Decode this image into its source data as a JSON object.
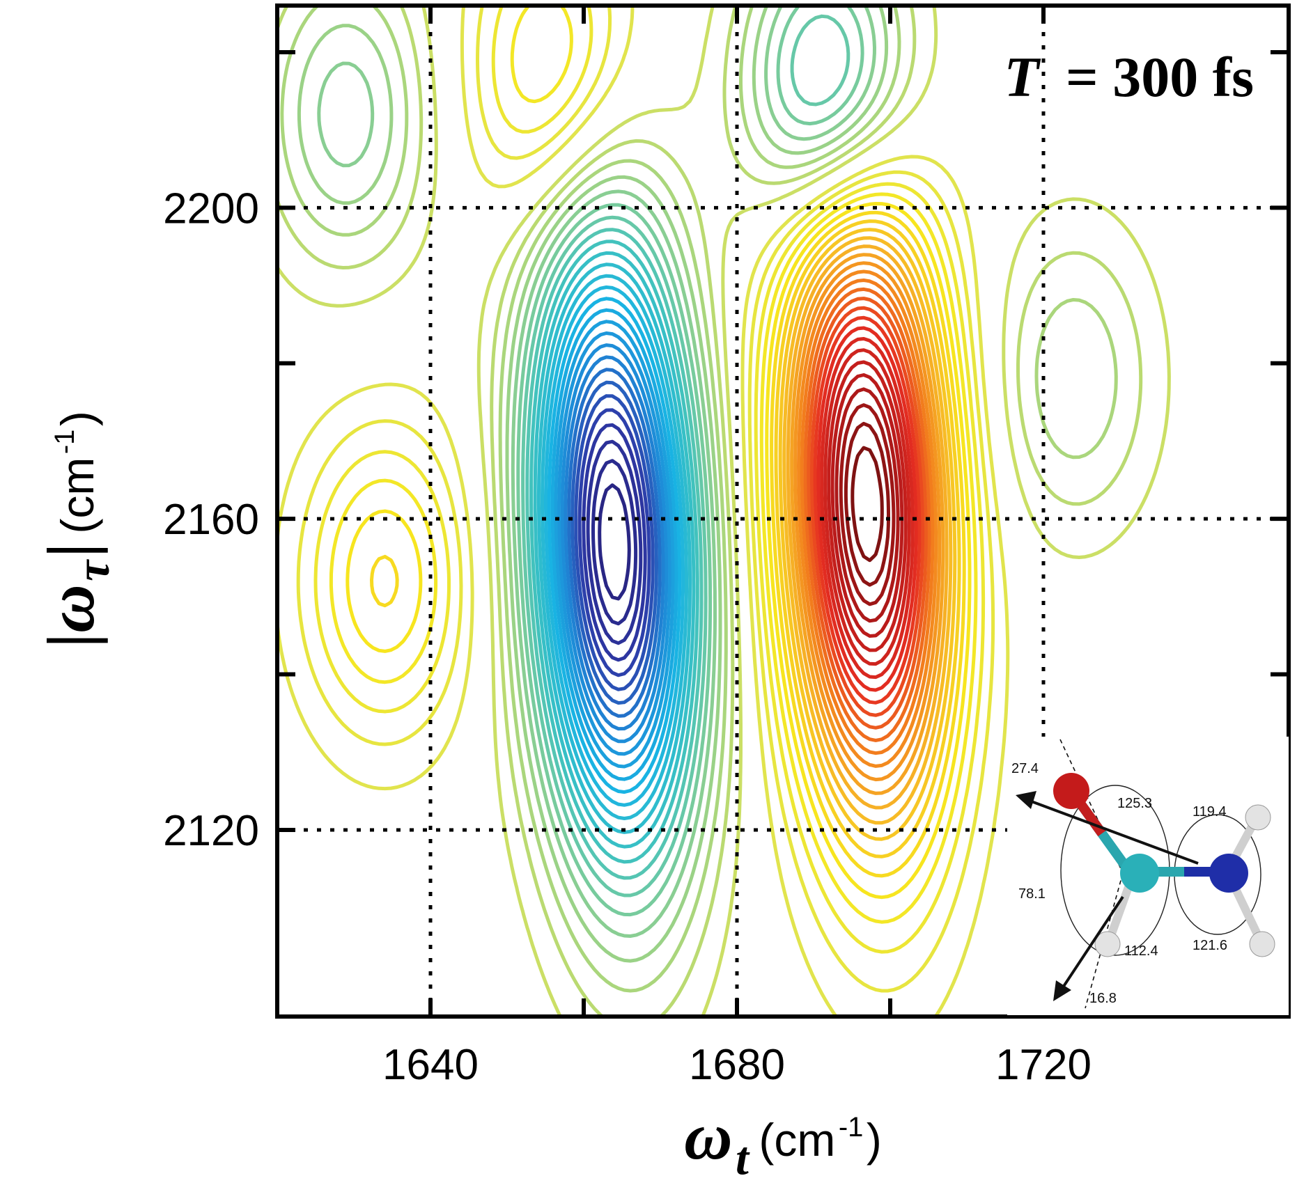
{
  "chart_data": {
    "type": "contour",
    "annotation": {
      "symbol": "T",
      "rest": "= 300 fs"
    },
    "xaxis": {
      "symbol": "ω",
      "subscript": "t",
      "unit": "(cm",
      "unit_exp": "-1",
      "unit_close": ")",
      "range": [
        1620,
        1752
      ],
      "ticks": [
        1640,
        1680,
        1720
      ],
      "tick_labels": [
        "1640",
        "1680",
        "1720"
      ]
    },
    "yaxis": {
      "symbol": "|ω",
      "subscript": "τ",
      "bar": "|",
      "unit": "(cm",
      "unit_exp": "-1",
      "unit_close": ")",
      "range": [
        2096,
        2226
      ],
      "ticks": [
        2120,
        2160,
        2200
      ],
      "tick_labels": [
        "2120",
        "2160",
        "2200"
      ]
    },
    "guide_lines_x": [
      1640,
      1680,
      1720
    ],
    "guide_lines_y": [
      2120,
      2160,
      2200
    ],
    "extra_ticks_x": [
      1660,
      1700
    ],
    "extra_ticks_y": [
      2140,
      2180,
      2220
    ],
    "peaks": [
      {
        "name": "negative-main",
        "x": 1664,
        "y": 2157,
        "amplitude": -1.0
      },
      {
        "name": "positive-main",
        "x": 1697,
        "y": 2162,
        "amplitude": 1.0
      },
      {
        "name": "negative-upper",
        "x": 1692,
        "y": 2215,
        "amplitude": -0.4
      },
      {
        "name": "positive-upper",
        "x": 1656,
        "y": 2217,
        "amplitude": 0.22
      },
      {
        "name": "negative-upper-left",
        "x": 1629,
        "y": 2212,
        "amplitude": -0.2
      },
      {
        "name": "positive-left",
        "x": 1634,
        "y": 2152,
        "amplitude": 0.22
      },
      {
        "name": "negative-right",
        "x": 1724,
        "y": 2178,
        "amplitude": -0.14
      }
    ],
    "colormap": [
      "#27207a",
      "#2e3aa8",
      "#1f87d6",
      "#19b3e3",
      "#3cc1c1",
      "#8fcf8f",
      "#dbe35a",
      "#f7e81e",
      "#f7b827",
      "#f27d1d",
      "#e52d22",
      "#b71a1a",
      "#6e1010"
    ]
  },
  "inset": {
    "angles": [
      "27.4",
      "125.3",
      "119.4",
      "78.1",
      "112.4",
      "121.6",
      "16.8"
    ]
  }
}
